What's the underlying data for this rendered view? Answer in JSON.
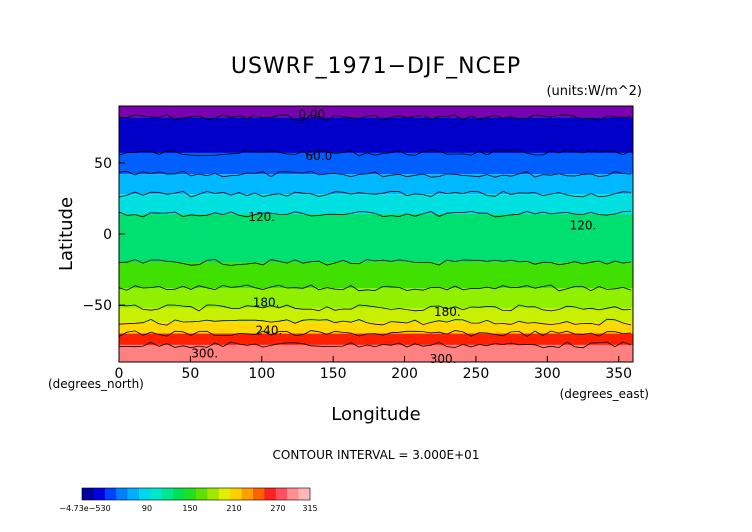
{
  "chart_data": {
    "type": "heatmap",
    "title": "USWRF_1971−DJF_NCEP",
    "units": "(units:W/m^2)",
    "xlabel": "Longitude",
    "ylabel": "Latitude",
    "xunit": "(degrees_east)",
    "yunit": "(degrees_north)",
    "xlim": [
      0,
      360
    ],
    "ylim": [
      -90,
      90
    ],
    "xticks": [
      "0",
      "50",
      "100",
      "150",
      "200",
      "250",
      "300",
      "350"
    ],
    "yticks": [
      "50",
      "0",
      "−50"
    ],
    "contour_interval": "CONTOUR INTERVAL = 3.000E+01",
    "contour_labels": [
      {
        "text": "0.00",
        "lon": 135,
        "lat": 84
      },
      {
        "text": "60.0",
        "lon": 140,
        "lat": 55
      },
      {
        "text": "120.",
        "lon": 100,
        "lat": 12
      },
      {
        "text": "120.",
        "lon": 325,
        "lat": 6
      },
      {
        "text": "180.",
        "lon": 103,
        "lat": -48
      },
      {
        "text": "180.",
        "lon": 230,
        "lat": -55
      },
      {
        "text": "240.",
        "lon": 105,
        "lat": -68
      },
      {
        "text": "300.",
        "lon": 60,
        "lat": -84
      },
      {
        "text": "300.",
        "lon": 227,
        "lat": -88
      }
    ],
    "bands": [
      {
        "lat_from": 90,
        "lat_to": 82,
        "value": 0
      },
      {
        "lat_from": 82,
        "lat_to": 57,
        "value": 30
      },
      {
        "lat_from": 57,
        "lat_to": 42,
        "value": 75
      },
      {
        "lat_from": 42,
        "lat_to": 28,
        "value": 105
      },
      {
        "lat_from": 28,
        "lat_to": 14,
        "value": 120
      },
      {
        "lat_from": 14,
        "lat_to": -20,
        "value": 140
      },
      {
        "lat_from": -20,
        "lat_to": -38,
        "value": 160
      },
      {
        "lat_from": -38,
        "lat_to": -52,
        "value": 180
      },
      {
        "lat_from": -52,
        "lat_to": -62,
        "value": 200
      },
      {
        "lat_from": -62,
        "lat_to": -70,
        "value": 225
      },
      {
        "lat_from": -70,
        "lat_to": -78,
        "value": 270
      },
      {
        "lat_from": -78,
        "lat_to": -90,
        "value": 300
      }
    ],
    "colorbar": {
      "labels": [
        "−4.73e−530",
        "90",
        "150",
        "210",
        "270",
        "315"
      ],
      "colors": [
        "#0000a0",
        "#0000e0",
        "#0040ff",
        "#0080ff",
        "#00b0ff",
        "#00d8f0",
        "#00e8c8",
        "#00e890",
        "#00e050",
        "#20e020",
        "#60e000",
        "#a0e800",
        "#e0f000",
        "#ffd000",
        "#ffa000",
        "#ff6000",
        "#ff2020",
        "#ff5060",
        "#ff9090",
        "#ffb8b8"
      ]
    }
  }
}
